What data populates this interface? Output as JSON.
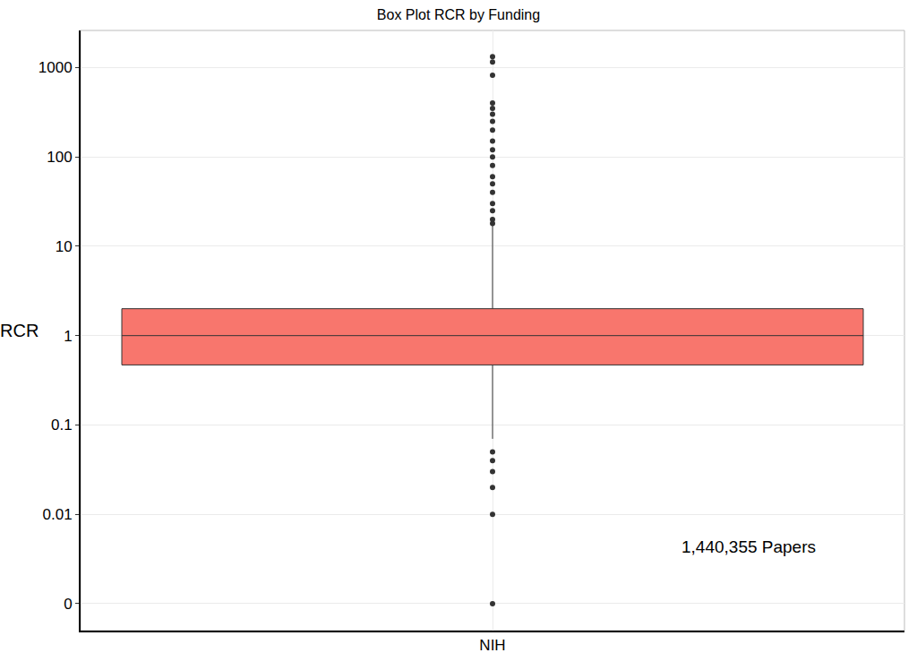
{
  "chart_data": {
    "type": "box",
    "title": "Box Plot RCR by Funding",
    "y_label": "RCR",
    "categories": [
      "NIH"
    ],
    "q1": [
      0.47
    ],
    "median": [
      1
    ],
    "q3": [
      2.0
    ],
    "lowerfence": [
      0.07
    ],
    "upperfence": [
      17
    ],
    "outliers": [
      [
        0.001,
        0.01,
        0.02,
        0.03,
        0.04,
        0.05,
        18,
        20,
        25,
        30,
        40,
        50,
        60,
        80,
        100,
        120,
        150,
        200,
        250,
        300,
        350,
        400,
        820,
        1150,
        1320
      ]
    ],
    "color": "#f8766d",
    "log": "y",
    "ylim": [
      0.0005,
      2600
    ],
    "yticks": [
      {
        "value": 0.001,
        "label": "0"
      },
      0.01,
      0.1,
      1,
      10,
      100,
      1000
    ],
    "grid": true,
    "annotations": [
      {
        "text": "1,440,355 Papers"
      }
    ]
  }
}
